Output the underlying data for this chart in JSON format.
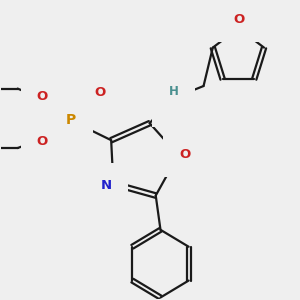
{
  "bg_color": "#efefef",
  "bond_color": "#1a1a1a",
  "colors": {
    "N": "#2222cc",
    "O": "#cc2222",
    "P": "#cc8800",
    "H": "#4a9090",
    "C": "#1a1a1a"
  },
  "bw": 1.6,
  "dbo": 0.055,
  "fs": 9.5
}
